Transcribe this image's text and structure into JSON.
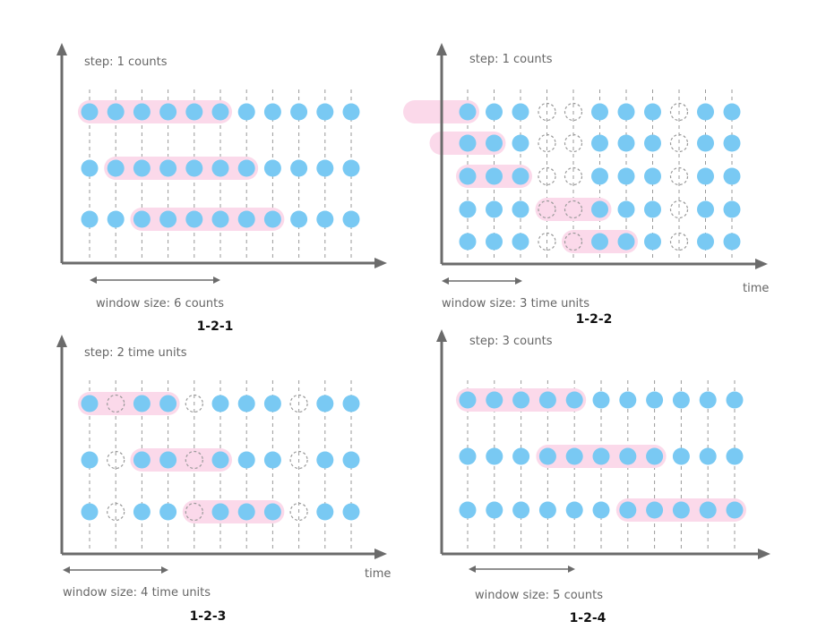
{
  "colors": {
    "dot": "#79c9f3",
    "highlight": "#fbd9ea",
    "axis": "#6b6b6b",
    "grid": "#9a9a9a"
  },
  "panels": [
    {
      "caption": "1-2-1",
      "step_label": "step: 1 counts",
      "window_label": "window size: 6 counts",
      "time_label": "",
      "columns": 11,
      "rows": [
        {
          "empty": [],
          "window": [
            0,
            5
          ]
        },
        {
          "empty": [],
          "window": [
            1,
            6
          ]
        },
        {
          "empty": [],
          "window": [
            2,
            7
          ]
        }
      ]
    },
    {
      "caption": "1-2-2",
      "step_label": "step: 1 counts",
      "window_label": "window size: 3 time units",
      "time_label": "time",
      "columns": 11,
      "rows": [
        {
          "empty": [
            3,
            4,
            8
          ],
          "window": [
            -2,
            0
          ]
        },
        {
          "empty": [
            3,
            4,
            8
          ],
          "window": [
            -1,
            1
          ]
        },
        {
          "empty": [
            3,
            4,
            8
          ],
          "window": [
            0,
            2
          ]
        },
        {
          "empty": [
            3,
            4,
            8
          ],
          "window": [
            3,
            5
          ]
        },
        {
          "empty": [
            3,
            4,
            8
          ],
          "window": [
            4,
            6
          ]
        }
      ]
    },
    {
      "caption": "1-2-3",
      "step_label": "step: 2 time units",
      "window_label": "window size: 4 time units",
      "time_label": "time",
      "columns": 11,
      "rows": [
        {
          "empty": [
            1,
            4,
            8
          ],
          "window": [
            0,
            3
          ]
        },
        {
          "empty": [
            1,
            4,
            8
          ],
          "window": [
            2,
            5
          ]
        },
        {
          "empty": [
            1,
            4,
            8
          ],
          "window": [
            4,
            7
          ]
        }
      ]
    },
    {
      "caption": "1-2-4",
      "step_label": "step: 3 counts",
      "window_label": "window size: 5 counts",
      "time_label": "",
      "columns": 11,
      "rows": [
        {
          "empty": [],
          "window": [
            0,
            4
          ]
        },
        {
          "empty": [],
          "window": [
            3,
            7
          ]
        },
        {
          "empty": [],
          "window": [
            6,
            10
          ]
        }
      ]
    }
  ]
}
